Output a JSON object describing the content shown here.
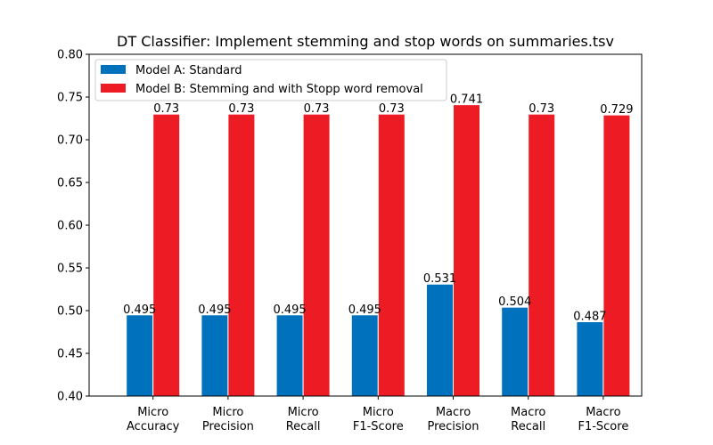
{
  "chart_data": {
    "type": "bar",
    "title": "DT Classifier: Implement stemming and stop words on summaries.tsv",
    "xlabel": "",
    "ylabel": "",
    "categories": [
      [
        "Micro",
        "Accuracy"
      ],
      [
        "Micro",
        "Precision"
      ],
      [
        "Micro",
        "Recall"
      ],
      [
        "Micro",
        "F1-Score"
      ],
      [
        "Macro",
        "Precision"
      ],
      [
        "Macro",
        "Recall"
      ],
      [
        "Macro",
        "F1-Score"
      ]
    ],
    "series": [
      {
        "name": "Model A: Standard",
        "color": "#0072bd",
        "values": [
          0.495,
          0.495,
          0.495,
          0.495,
          0.531,
          0.504,
          0.487
        ],
        "labels": [
          "0.495",
          "0.495",
          "0.495",
          "0.495",
          "0.531",
          "0.504",
          "0.487"
        ]
      },
      {
        "name": "Model B: Stemming and with Stopp word removal",
        "color": "#ed1c24",
        "values": [
          0.73,
          0.73,
          0.73,
          0.73,
          0.741,
          0.73,
          0.729
        ],
        "labels": [
          "0.73",
          "0.73",
          "0.73",
          "0.73",
          "0.741",
          "0.73",
          "0.729"
        ]
      }
    ],
    "ylim": [
      0.4,
      0.8
    ],
    "yticks": [
      "0.40",
      "0.45",
      "0.50",
      "0.55",
      "0.60",
      "0.65",
      "0.70",
      "0.75",
      "0.80"
    ],
    "legend": "top-left",
    "grid": false
  }
}
